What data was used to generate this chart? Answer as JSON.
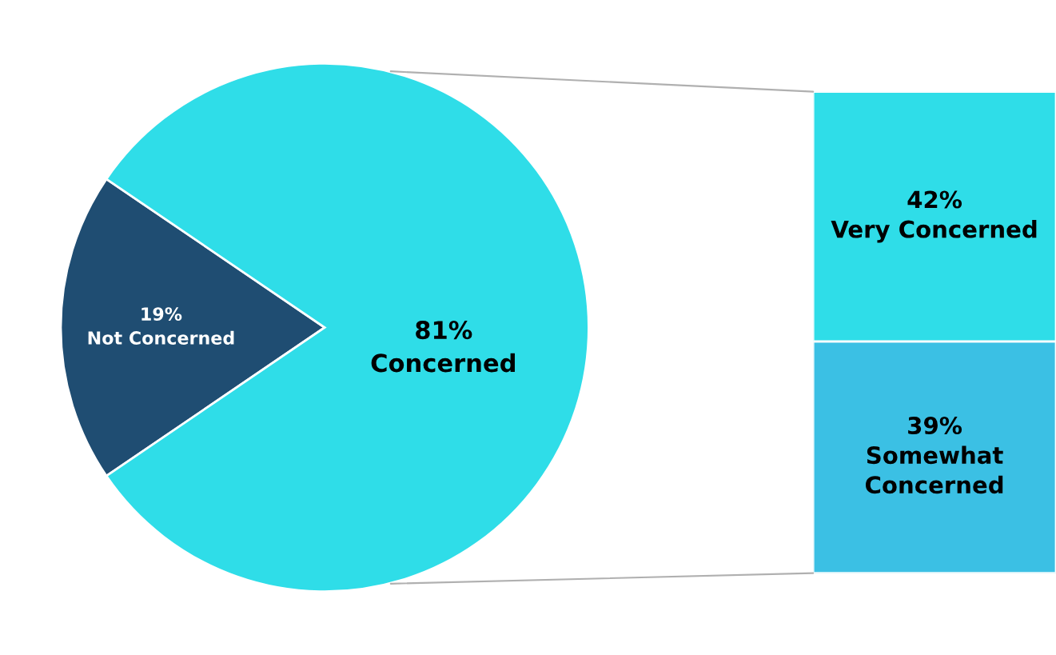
{
  "chart_data": [
    {
      "type": "pie",
      "categories": [
        "Not Concerned",
        "Concerned"
      ],
      "values": [
        19,
        81
      ],
      "colors": [
        "#1f4d72",
        "#2fdde8"
      ],
      "value_labels": [
        "19%",
        "81%"
      ]
    },
    {
      "type": "bar",
      "stacked": true,
      "categories": [
        null
      ],
      "series": [
        {
          "name": "Somewhat Concerned",
          "color": "#3bc0e4",
          "values": [
            39
          ],
          "value_labels": [
            "39%"
          ]
        },
        {
          "name": "Very Concerned",
          "color": "#2fdde8",
          "values": [
            42
          ],
          "value_labels": [
            "42%"
          ]
        }
      ]
    }
  ]
}
